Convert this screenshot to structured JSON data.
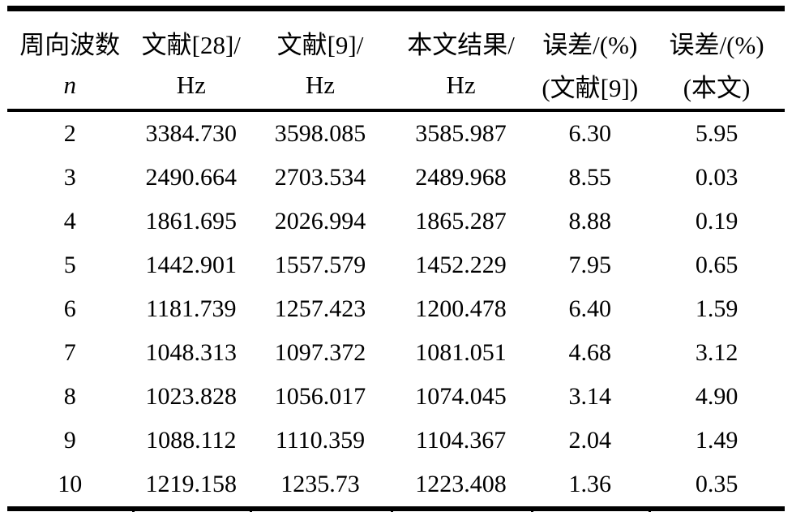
{
  "table": {
    "title": "frequency-comparison-table",
    "columns": [
      {
        "line1": "周向波数",
        "line2": "n"
      },
      {
        "line1": "文献[28]/",
        "line2": "Hz"
      },
      {
        "line1": "文献[9]/",
        "line2": "Hz"
      },
      {
        "line1": "本文结果/",
        "line2": "Hz"
      },
      {
        "line1": "误差/(%)",
        "line2": "(文献[9])"
      },
      {
        "line1": "误差/(%)",
        "line2": "(本文)"
      }
    ],
    "rows": [
      [
        "2",
        "3384.730",
        "3598.085",
        "3585.987",
        "6.30",
        "5.95"
      ],
      [
        "3",
        "2490.664",
        "2703.534",
        "2489.968",
        "8.55",
        "0.03"
      ],
      [
        "4",
        "1861.695",
        "2026.994",
        "1865.287",
        "8.88",
        "0.19"
      ],
      [
        "5",
        "1442.901",
        "1557.579",
        "1452.229",
        "7.95",
        "0.65"
      ],
      [
        "6",
        "1181.739",
        "1257.423",
        "1200.478",
        "6.40",
        "1.59"
      ],
      [
        "7",
        "1048.313",
        "1097.372",
        "1081.051",
        "4.68",
        "3.12"
      ],
      [
        "8",
        "1023.828",
        "1056.017",
        "1074.045",
        "3.14",
        "4.90"
      ],
      [
        "9",
        "1088.112",
        "1110.359",
        "1104.367",
        "2.04",
        "1.49"
      ],
      [
        "10",
        "1219.158",
        "1235.73",
        "1223.408",
        "1.36",
        "0.35"
      ]
    ]
  },
  "chart_data": {
    "type": "table",
    "title": "",
    "categories": [
      2,
      3,
      4,
      5,
      6,
      7,
      8,
      9,
      10
    ],
    "series": [
      {
        "name": "文献[28]/Hz",
        "values": [
          3384.73,
          2490.664,
          1861.695,
          1442.901,
          1181.739,
          1048.313,
          1023.828,
          1088.112,
          1219.158
        ]
      },
      {
        "name": "文献[9]/Hz",
        "values": [
          3598.085,
          2703.534,
          2026.994,
          1557.579,
          1257.423,
          1097.372,
          1056.017,
          1110.359,
          1235.73
        ]
      },
      {
        "name": "本文结果/Hz",
        "values": [
          3585.987,
          2489.968,
          1865.287,
          1452.229,
          1200.478,
          1081.051,
          1074.045,
          1104.367,
          1223.408
        ]
      },
      {
        "name": "误差/(%)(文献[9])",
        "values": [
          6.3,
          8.55,
          8.88,
          7.95,
          6.4,
          4.68,
          3.14,
          2.04,
          1.36
        ]
      },
      {
        "name": "误差/(%)(本文)",
        "values": [
          5.95,
          0.03,
          0.19,
          0.65,
          1.59,
          3.12,
          4.9,
          1.49,
          0.35
        ]
      }
    ]
  },
  "colors": {
    "text": "#000000",
    "background": "#ffffff",
    "rule": "#000000"
  }
}
